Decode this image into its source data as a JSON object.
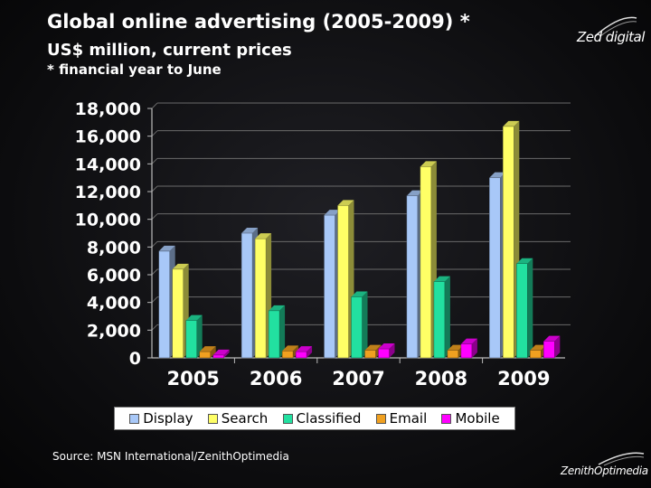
{
  "header": {
    "title": "Global online advertising (2005-2009) *",
    "subtitle": "US$ million, current prices",
    "note": "* financial year to June"
  },
  "logos": {
    "top": "Zed digital",
    "bottom": "ZenithOptimedia"
  },
  "footer": {
    "source": "Source: MSN International/ZenithOptimedia"
  },
  "chart_data": {
    "type": "bar",
    "categories": [
      "2005",
      "2006",
      "2007",
      "2008",
      "2009"
    ],
    "y_ticks": [
      "0",
      "2,000",
      "4,000",
      "6,000",
      "8,000",
      "10,000",
      "12,000",
      "14,000",
      "16,000",
      "18,000"
    ],
    "ylim": [
      0,
      18000
    ],
    "grid": true,
    "legend_position": "bottom",
    "series": [
      {
        "name": "Display",
        "color": "#a8c8f8",
        "values": [
          7700,
          9000,
          10300,
          11700,
          13000
        ]
      },
      {
        "name": "Search",
        "color": "#ffff66",
        "values": [
          6400,
          8600,
          11000,
          13800,
          16700
        ]
      },
      {
        "name": "Classified",
        "color": "#22e0a0",
        "values": [
          2700,
          3400,
          4400,
          5500,
          6800
        ]
      },
      {
        "name": "Email",
        "color": "#f0a020",
        "values": [
          450,
          500,
          550,
          550,
          550
        ]
      },
      {
        "name": "Mobile",
        "color": "#ff00ff",
        "values": [
          200,
          450,
          650,
          1000,
          1200
        ]
      }
    ]
  }
}
